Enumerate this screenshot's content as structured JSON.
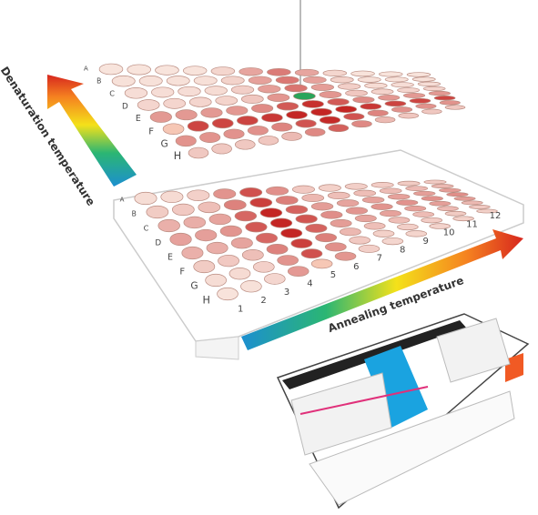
{
  "denaturation_label": "Denaturation temperature",
  "annealing_label": "Annealing temperature",
  "top_plate": {
    "rows": [
      "A",
      "B",
      "C",
      "D",
      "E",
      "F",
      "G",
      "H"
    ]
  },
  "bottom_plate": {
    "rows": [
      "A",
      "B",
      "C",
      "D",
      "E",
      "F",
      "G",
      "H"
    ],
    "columns": [
      "1",
      "2",
      "3",
      "4",
      "5",
      "6",
      "7",
      "8",
      "9",
      "10",
      "11",
      "12"
    ]
  }
}
